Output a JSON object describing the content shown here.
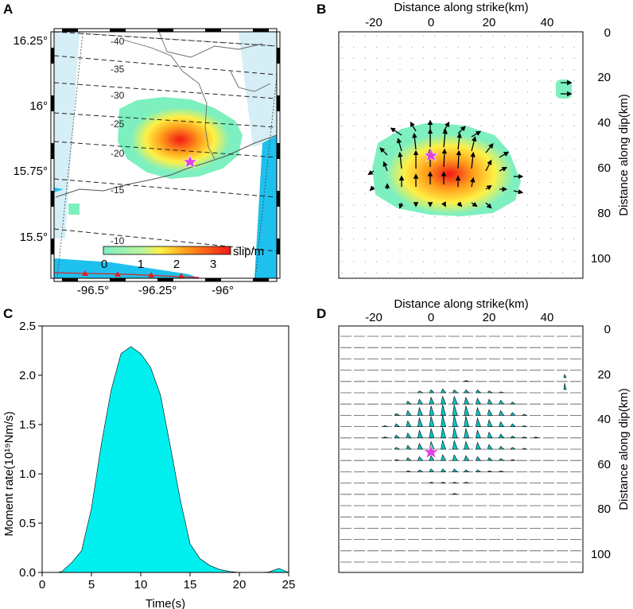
{
  "panels": {
    "A": {
      "label": "A",
      "lat_ticks": [
        "16.25°",
        "16°",
        "15.75°",
        "15.5°"
      ],
      "lon_ticks": [
        "-96.5°",
        "-96.25°",
        "-96°"
      ],
      "depth_contours": [
        "-40",
        "-35",
        "-30",
        "-25",
        "-20",
        "-15",
        "-10"
      ],
      "colorbar": {
        "ticks": [
          "0",
          "1",
          "2",
          "3"
        ],
        "label": "slip/m",
        "colors": [
          "#7ef0c0",
          "#fff045",
          "#ff9c1a",
          "#f21818"
        ]
      }
    },
    "B": {
      "label": "B",
      "xlabel": "Distance along strike(km)",
      "ylabel": "Distance along dip(km)",
      "x_ticks": [
        "-20",
        "0",
        "20",
        "40"
      ],
      "y_ticks": [
        "0",
        "20",
        "40",
        "60",
        "80",
        "100"
      ]
    },
    "C": {
      "label": "C",
      "xlabel": "Time(s)",
      "ylabel": "Moment rate(10¹⁹Nm/s)",
      "x_ticks": [
        "0",
        "5",
        "10",
        "15",
        "20",
        "25"
      ],
      "y_ticks": [
        "0.0",
        "0.5",
        "1.0",
        "1.5",
        "2.0",
        "2.5"
      ],
      "fill_color": "#00f0f0"
    },
    "D": {
      "label": "D",
      "xlabel": "Distance along strike(km)",
      "ylabel": "Distance along dip(km)",
      "x_ticks": [
        "-20",
        "0",
        "20",
        "40"
      ],
      "y_ticks": [
        "0",
        "20",
        "40",
        "60",
        "80",
        "100"
      ]
    }
  },
  "chart_data": [
    {
      "type": "area",
      "panel": "C",
      "title": "",
      "xlabel": "Time(s)",
      "ylabel": "Moment rate(10¹⁹Nm/s)",
      "xlim": [
        0,
        25
      ],
      "ylim": [
        0,
        2.5
      ],
      "x": [
        0,
        1.5,
        2,
        3,
        4,
        5,
        6,
        7,
        8,
        9,
        10,
        11,
        12,
        13,
        14,
        15,
        16,
        17,
        18,
        19,
        20,
        22,
        23,
        24,
        25
      ],
      "values": [
        0,
        0,
        0.01,
        0.1,
        0.22,
        0.65,
        1.3,
        1.85,
        2.22,
        2.29,
        2.22,
        2.08,
        1.8,
        1.28,
        0.74,
        0.29,
        0.14,
        0.07,
        0.03,
        0.01,
        0,
        0,
        0.005,
        0.04,
        0.0
      ]
    }
  ]
}
